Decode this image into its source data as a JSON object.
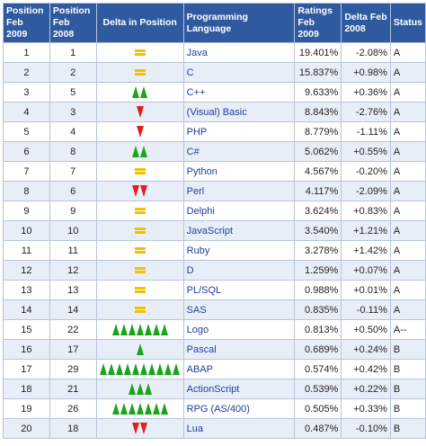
{
  "headers": {
    "pos2009": "Position Feb 2009",
    "pos2008": "Position Feb 2008",
    "delta_pos": "Delta in Position",
    "language": "Programming Language",
    "ratings": "Ratings Feb 2009",
    "delta_rating": "Delta Feb 2008",
    "status": "Status"
  },
  "colors": {
    "header_bg": "#2f5aa0",
    "equal": "#f2c200",
    "up": "#1aa51a",
    "down": "#e31d1d",
    "language_link": "#1f3f99"
  },
  "rows": [
    {
      "pos2009": "1",
      "pos2008": "1",
      "delta": {
        "dir": "equal",
        "count": 1
      },
      "language": "Java",
      "rating": "19.401%",
      "delta_rating": "-2.08%",
      "status": "A"
    },
    {
      "pos2009": "2",
      "pos2008": "2",
      "delta": {
        "dir": "equal",
        "count": 1
      },
      "language": "C",
      "rating": "15.837%",
      "delta_rating": "+0.98%",
      "status": "A"
    },
    {
      "pos2009": "3",
      "pos2008": "5",
      "delta": {
        "dir": "up",
        "count": 2
      },
      "language": "C++",
      "rating": "9.633%",
      "delta_rating": "+0.36%",
      "status": "A"
    },
    {
      "pos2009": "4",
      "pos2008": "3",
      "delta": {
        "dir": "down",
        "count": 1
      },
      "language": "(Visual) Basic",
      "rating": "8.843%",
      "delta_rating": "-2.76%",
      "status": "A"
    },
    {
      "pos2009": "5",
      "pos2008": "4",
      "delta": {
        "dir": "down",
        "count": 1
      },
      "language": "PHP",
      "rating": "8.779%",
      "delta_rating": "-1.11%",
      "status": "A"
    },
    {
      "pos2009": "6",
      "pos2008": "8",
      "delta": {
        "dir": "up",
        "count": 2
      },
      "language": "C#",
      "rating": "5.062%",
      "delta_rating": "+0.55%",
      "status": "A"
    },
    {
      "pos2009": "7",
      "pos2008": "7",
      "delta": {
        "dir": "equal",
        "count": 1
      },
      "language": "Python",
      "rating": "4.567%",
      "delta_rating": "-0.20%",
      "status": "A"
    },
    {
      "pos2009": "8",
      "pos2008": "6",
      "delta": {
        "dir": "down",
        "count": 2
      },
      "language": "Perl",
      "rating": "4.117%",
      "delta_rating": "-2.09%",
      "status": "A"
    },
    {
      "pos2009": "9",
      "pos2008": "9",
      "delta": {
        "dir": "equal",
        "count": 1
      },
      "language": "Delphi",
      "rating": "3.624%",
      "delta_rating": "+0.83%",
      "status": "A"
    },
    {
      "pos2009": "10",
      "pos2008": "10",
      "delta": {
        "dir": "equal",
        "count": 1
      },
      "language": "JavaScript",
      "rating": "3.540%",
      "delta_rating": "+1.21%",
      "status": "A"
    },
    {
      "pos2009": "11",
      "pos2008": "11",
      "delta": {
        "dir": "equal",
        "count": 1
      },
      "language": "Ruby",
      "rating": "3.278%",
      "delta_rating": "+1.42%",
      "status": "A"
    },
    {
      "pos2009": "12",
      "pos2008": "12",
      "delta": {
        "dir": "equal",
        "count": 1
      },
      "language": "D",
      "rating": "1.259%",
      "delta_rating": "+0.07%",
      "status": "A"
    },
    {
      "pos2009": "13",
      "pos2008": "13",
      "delta": {
        "dir": "equal",
        "count": 1
      },
      "language": "PL/SQL",
      "rating": "0.988%",
      "delta_rating": "+0.01%",
      "status": "A"
    },
    {
      "pos2009": "14",
      "pos2008": "14",
      "delta": {
        "dir": "equal",
        "count": 1
      },
      "language": "SAS",
      "rating": "0.835%",
      "delta_rating": "-0.11%",
      "status": "A"
    },
    {
      "pos2009": "15",
      "pos2008": "22",
      "delta": {
        "dir": "up",
        "count": 7
      },
      "language": "Logo",
      "rating": "0.813%",
      "delta_rating": "+0.50%",
      "status": "A--"
    },
    {
      "pos2009": "16",
      "pos2008": "17",
      "delta": {
        "dir": "up",
        "count": 1
      },
      "language": "Pascal",
      "rating": "0.689%",
      "delta_rating": "+0.24%",
      "status": "B"
    },
    {
      "pos2009": "17",
      "pos2008": "29",
      "delta": {
        "dir": "up",
        "count": 10
      },
      "language": "ABAP",
      "rating": "0.574%",
      "delta_rating": "+0.42%",
      "status": "B"
    },
    {
      "pos2009": "18",
      "pos2008": "21",
      "delta": {
        "dir": "up",
        "count": 3
      },
      "language": "ActionScript",
      "rating": "0.539%",
      "delta_rating": "+0.22%",
      "status": "B"
    },
    {
      "pos2009": "19",
      "pos2008": "26",
      "delta": {
        "dir": "up",
        "count": 7
      },
      "language": "RPG (AS/400)",
      "rating": "0.505%",
      "delta_rating": "+0.33%",
      "status": "B"
    },
    {
      "pos2009": "20",
      "pos2008": "18",
      "delta": {
        "dir": "down",
        "count": 2
      },
      "language": "Lua",
      "rating": "0.487%",
      "delta_rating": "-0.10%",
      "status": "B"
    }
  ]
}
